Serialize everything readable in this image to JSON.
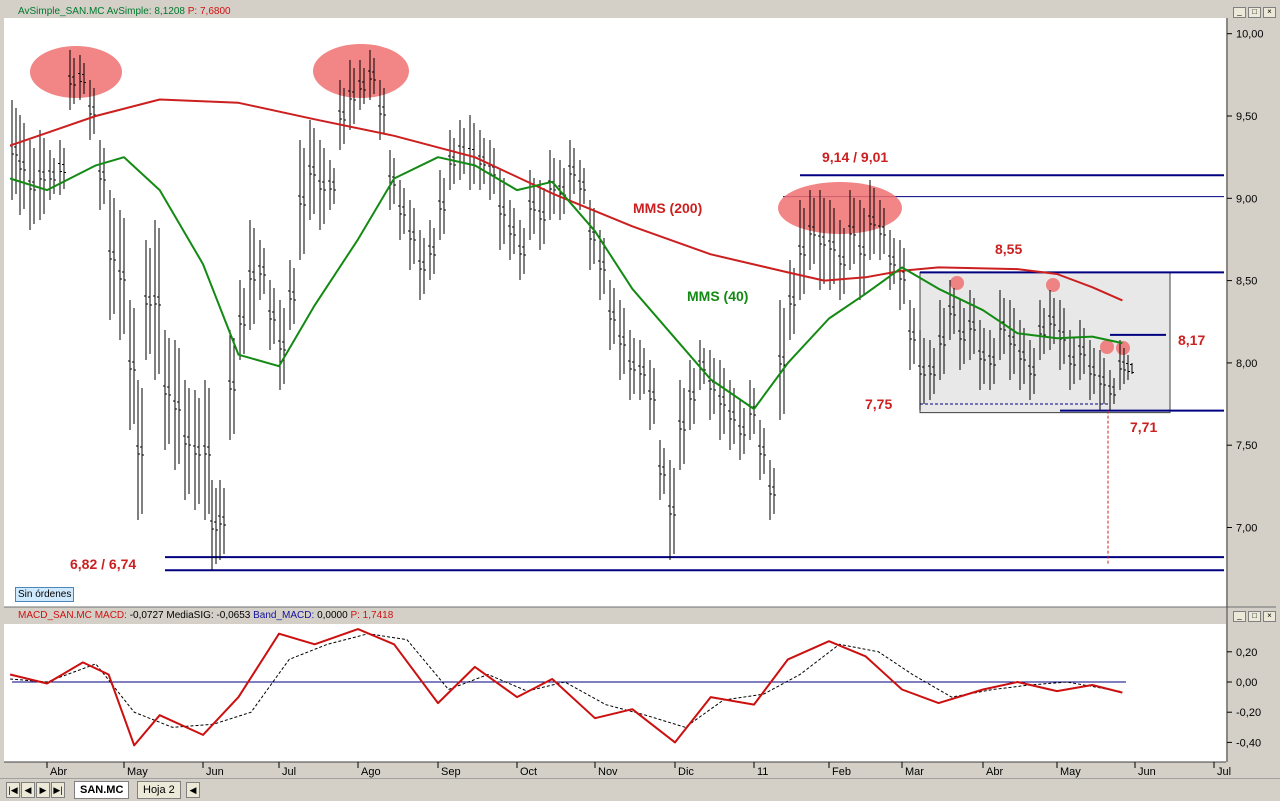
{
  "price_header": {
    "label": "AvSimple_SAN.MC",
    "series": "AvSimple:",
    "value": "8,1208",
    "price_label": "P:",
    "price_value": "7,6800"
  },
  "macd_header": {
    "label": "MACD_SAN.MC",
    "macd_label": "MACD:",
    "macd_value": "-0,0727",
    "signal_label": "MediaSIG:",
    "signal_value": "-0,0653",
    "band_label": "Band_MACD:",
    "band_value": "0,0000",
    "price_label": "P:",
    "price_value": "1,7418"
  },
  "window_buttons": [
    "_",
    "□",
    "×"
  ],
  "orders_badge": "Sin órdenes",
  "tabs": {
    "active": "SAN.MC",
    "inactive": "Hoja 2",
    "nav": [
      "|◀",
      "◀",
      "▶",
      "▶|"
    ]
  },
  "colors": {
    "price_bars": "#000000",
    "mms200": "#cc1f1f",
    "mms40": "#138a13",
    "levels": "#000080",
    "annotation": "#cc1f1f",
    "highlight": "#f07070",
    "macd": "#cc1010",
    "signal": "#000000",
    "range_box": "#e8e8e8"
  },
  "chart_data": [
    {
      "type": "line",
      "title": "",
      "series": [
        {
          "name": "MMS (200)",
          "x": [
            "2010-03-20",
            "2010-04-20",
            "2010-05-15",
            "2010-06-15",
            "2010-07-15",
            "2010-08-15",
            "2010-09-15",
            "2010-10-15",
            "2010-11-15",
            "2010-12-15",
            "2011-01-15",
            "2011-01-30",
            "2011-02-15",
            "2011-03-01",
            "2011-03-15",
            "2011-04-15",
            "2011-05-01",
            "2011-05-15",
            "2011-05-27"
          ],
          "values": [
            9.32,
            9.5,
            9.6,
            9.58,
            9.48,
            9.38,
            9.25,
            9.03,
            8.83,
            8.66,
            8.55,
            8.5,
            8.52,
            8.56,
            8.58,
            8.57,
            8.54,
            8.46,
            8.38
          ]
        },
        {
          "name": "MMS (40)",
          "x": [
            "2010-03-20",
            "2010-04-01",
            "2010-04-20",
            "2010-05-01",
            "2010-05-15",
            "2010-06-01",
            "2010-06-15",
            "2010-07-01",
            "2010-07-15",
            "2010-08-01",
            "2010-08-15",
            "2010-09-01",
            "2010-09-15",
            "2010-10-01",
            "2010-10-15",
            "2010-11-01",
            "2010-11-15",
            "2010-12-01",
            "2010-12-15",
            "2011-01-01",
            "2011-01-15",
            "2011-02-01",
            "2011-02-15",
            "2011-03-01",
            "2011-03-15",
            "2011-04-01",
            "2011-04-15",
            "2011-05-01",
            "2011-05-15",
            "2011-05-27"
          ],
          "values": [
            9.12,
            9.05,
            9.2,
            9.25,
            9.05,
            8.6,
            8.05,
            7.98,
            8.35,
            8.75,
            9.12,
            9.25,
            9.2,
            9.05,
            9.1,
            8.8,
            8.45,
            8.15,
            7.9,
            7.72,
            8.0,
            8.27,
            8.42,
            8.58,
            8.45,
            8.32,
            8.18,
            8.15,
            8.16,
            8.12
          ]
        }
      ],
      "ylim": [
        6.6,
        10.1
      ],
      "y_ticks": [
        "7,00",
        "7,50",
        "8,00",
        "8,50",
        "9,00",
        "9,50",
        "10,00"
      ],
      "x_ticks": [
        "Abr",
        "May",
        "Jun",
        "Jul",
        "Ago",
        "Sep",
        "Oct",
        "Nov",
        "Dic",
        "11",
        "Feb",
        "Mar",
        "Abr",
        "May",
        "Jun",
        "Jul"
      ],
      "levels": {
        "support_low": [
          6.82,
          6.74
        ],
        "resistance_high": [
          9.14,
          9.01
        ],
        "range_top": 8.55,
        "range_mid": 8.17,
        "range_low": [
          7.75,
          7.71
        ]
      },
      "annotations": [
        "9,14 / 9,01",
        "MMS (200)",
        "MMS (40)",
        "8,55",
        "8,17",
        "7,75",
        "7,71",
        "6,82 / 6,74"
      ],
      "grid": false
    },
    {
      "type": "line",
      "title": "",
      "series": [
        {
          "name": "MACD",
          "x": [
            "2010-03-20",
            "2010-04-01",
            "2010-04-15",
            "2010-04-25",
            "2010-05-05",
            "2010-05-15",
            "2010-06-01",
            "2010-06-15",
            "2010-07-01",
            "2010-07-15",
            "2010-08-01",
            "2010-08-15",
            "2010-09-01",
            "2010-09-15",
            "2010-10-01",
            "2010-10-15",
            "2010-11-01",
            "2010-11-15",
            "2010-12-01",
            "2010-12-15",
            "2011-01-01",
            "2011-01-15",
            "2011-02-01",
            "2011-02-15",
            "2011-03-01",
            "2011-03-15",
            "2011-04-01",
            "2011-04-15",
            "2011-05-01",
            "2011-05-15",
            "2011-05-27"
          ],
          "values": [
            0.05,
            -0.01,
            0.13,
            0.05,
            -0.42,
            -0.22,
            -0.35,
            -0.1,
            0.32,
            0.25,
            0.35,
            0.25,
            -0.14,
            0.1,
            -0.1,
            0.02,
            -0.24,
            -0.18,
            -0.4,
            -0.1,
            -0.15,
            0.15,
            0.27,
            0.17,
            -0.05,
            -0.14,
            -0.05,
            0.0,
            -0.06,
            -0.02,
            -0.07
          ]
        },
        {
          "name": "MediaSIG",
          "x": [
            "2010-03-20",
            "2010-04-01",
            "2010-04-20",
            "2010-05-05",
            "2010-05-20",
            "2010-06-05",
            "2010-06-20",
            "2010-07-05",
            "2010-07-20",
            "2010-08-05",
            "2010-08-20",
            "2010-09-05",
            "2010-09-20",
            "2010-10-05",
            "2010-10-20",
            "2010-11-05",
            "2010-11-20",
            "2010-12-05",
            "2010-12-20",
            "2011-01-05",
            "2011-01-20",
            "2011-02-05",
            "2011-02-20",
            "2011-03-05",
            "2011-03-20",
            "2011-04-05",
            "2011-04-20",
            "2011-05-05",
            "2011-05-27"
          ],
          "values": [
            0.02,
            0.0,
            0.12,
            -0.2,
            -0.3,
            -0.28,
            -0.2,
            0.15,
            0.25,
            0.32,
            0.28,
            -0.05,
            0.05,
            -0.06,
            0.0,
            -0.15,
            -0.22,
            -0.3,
            -0.12,
            -0.08,
            0.05,
            0.25,
            0.2,
            0.05,
            -0.1,
            -0.05,
            -0.02,
            0.0,
            -0.065
          ]
        },
        {
          "name": "Band_MACD",
          "x": [
            "2010-03-20",
            "2011-05-27"
          ],
          "values": [
            0,
            0
          ]
        }
      ],
      "ylim": [
        -0.5,
        0.4
      ],
      "y_ticks": [
        "-0,40",
        "-0,20",
        "0,00",
        "0,20"
      ]
    }
  ]
}
